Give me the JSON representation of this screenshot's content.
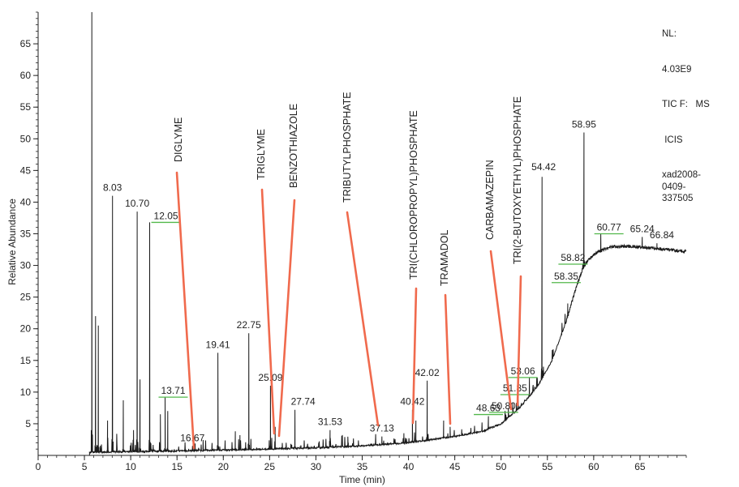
{
  "chart_data": {
    "type": "line",
    "xlabel": "Time (min)",
    "ylabel": "Relative Abundance",
    "xlim": [
      0,
      70
    ],
    "ylim": [
      0,
      70
    ],
    "x_ticks": [
      0,
      5,
      10,
      15,
      20,
      25,
      30,
      35,
      40,
      45,
      50,
      55,
      60,
      65
    ],
    "y_ticks": [
      5,
      10,
      15,
      20,
      25,
      30,
      35,
      40,
      45,
      50,
      55,
      60,
      65
    ],
    "grid": false,
    "info": {
      "nl_label": "NL:",
      "nl_value": "4.03E9",
      "tic": "TIC F:   MS",
      "icis": " ICIS",
      "file": "xad2008-\n0409-\n337505"
    },
    "baseline": [
      {
        "x": 5.6,
        "y": 0.5
      },
      {
        "x": 10,
        "y": 0.6
      },
      {
        "x": 15,
        "y": 0.7
      },
      {
        "x": 20,
        "y": 0.85
      },
      {
        "x": 25,
        "y": 1.0
      },
      {
        "x": 30,
        "y": 1.2
      },
      {
        "x": 35,
        "y": 1.5
      },
      {
        "x": 40,
        "y": 2.0
      },
      {
        "x": 45,
        "y": 3.0
      },
      {
        "x": 48,
        "y": 3.8
      },
      {
        "x": 50,
        "y": 5.0
      },
      {
        "x": 52,
        "y": 7.5
      },
      {
        "x": 54,
        "y": 11
      },
      {
        "x": 55.5,
        "y": 15
      },
      {
        "x": 57,
        "y": 21
      },
      {
        "x": 58,
        "y": 26
      },
      {
        "x": 58.8,
        "y": 29.5
      },
      {
        "x": 59.5,
        "y": 31
      },
      {
        "x": 60.5,
        "y": 32.2
      },
      {
        "x": 62,
        "y": 33
      },
      {
        "x": 64,
        "y": 33
      },
      {
        "x": 66,
        "y": 32.8
      },
      {
        "x": 68,
        "y": 32.5
      },
      {
        "x": 70,
        "y": 32.2
      }
    ],
    "peaks": [
      {
        "x": 5.8,
        "y": 70
      },
      {
        "x": 6.2,
        "y": 22
      },
      {
        "x": 6.5,
        "y": 20.5
      },
      {
        "x": 7.5,
        "y": 5.5
      },
      {
        "x": 8.03,
        "y": 41,
        "label": "8.03"
      },
      {
        "x": 9.2,
        "y": 8.7
      },
      {
        "x": 10.3,
        "y": 4
      },
      {
        "x": 10.7,
        "y": 38.5,
        "label": "10.70"
      },
      {
        "x": 11.0,
        "y": 12
      },
      {
        "x": 12.05,
        "y": 36.8,
        "label": "12.05"
      },
      {
        "x": 13.2,
        "y": 6.5
      },
      {
        "x": 13.71,
        "y": 9.2,
        "label": "13.71"
      },
      {
        "x": 14.0,
        "y": 7
      },
      {
        "x": 16.67,
        "y": 1.5,
        "label": "16.67"
      },
      {
        "x": 19.41,
        "y": 16.2,
        "label": "19.41"
      },
      {
        "x": 21.3,
        "y": 3.8
      },
      {
        "x": 21.8,
        "y": 3.2
      },
      {
        "x": 22.75,
        "y": 19.3,
        "label": "22.75"
      },
      {
        "x": 25.09,
        "y": 11,
        "label": "25.09"
      },
      {
        "x": 25.6,
        "y": 4.5
      },
      {
        "x": 27.74,
        "y": 7.2,
        "label": "27.74"
      },
      {
        "x": 31.53,
        "y": 4,
        "label": "31.53"
      },
      {
        "x": 33.5,
        "y": 2
      },
      {
        "x": 37.13,
        "y": 3,
        "label": "37.13"
      },
      {
        "x": 39.5,
        "y": 3.5
      },
      {
        "x": 40.42,
        "y": 7.2,
        "label": "40.42"
      },
      {
        "x": 40.8,
        "y": 5.5
      },
      {
        "x": 42.02,
        "y": 11.8,
        "label": "42.02"
      },
      {
        "x": 43.8,
        "y": 5.5
      },
      {
        "x": 44.5,
        "y": 4.5
      },
      {
        "x": 48.63,
        "y": 6.2,
        "label": "48.63"
      },
      {
        "x": 50.8,
        "y": 6.8,
        "label": "50.80"
      },
      {
        "x": 51.85,
        "y": 9.6,
        "label": "51.85"
      },
      {
        "x": 53.06,
        "y": 12.3,
        "label": "53.06"
      },
      {
        "x": 54.42,
        "y": 44,
        "label": "54.42"
      },
      {
        "x": 57.2,
        "y": 24
      },
      {
        "x": 58.35,
        "y": 27.8,
        "label": "58.35"
      },
      {
        "x": 58.82,
        "y": 30.2,
        "label": "58.82"
      },
      {
        "x": 58.95,
        "y": 51,
        "label": "58.95"
      },
      {
        "x": 60.77,
        "y": 35,
        "label": "60.77"
      },
      {
        "x": 65.24,
        "y": 34.5,
        "label": "65.24"
      },
      {
        "x": 66.84,
        "y": 33.5,
        "label": "66.84"
      }
    ],
    "compounds": [
      {
        "name": "DIGLYME",
        "x": 16.67
      },
      {
        "name": "TRIGLYME",
        "x": 25.4
      },
      {
        "name": "BENZOTHIAZOLE",
        "x": 25.8
      },
      {
        "name": "TRIBUTYLPHOSPHATE",
        "x": 37.13
      },
      {
        "name": "TRI(CHLOROPROPYL)PHOSPHATE",
        "x": 40.7
      },
      {
        "name": "TRAMADOL",
        "x": 44.5
      },
      {
        "name": "CARBAMAZEPIN",
        "x": 51.5
      },
      {
        "name": "TRI(2-BUTOXYETHYL)PHOSPHATE",
        "x": 51.85
      }
    ],
    "colors": {
      "trace": "#1a1a1a",
      "callout": "#f06a4d",
      "label_leader": "#52b84a"
    }
  }
}
